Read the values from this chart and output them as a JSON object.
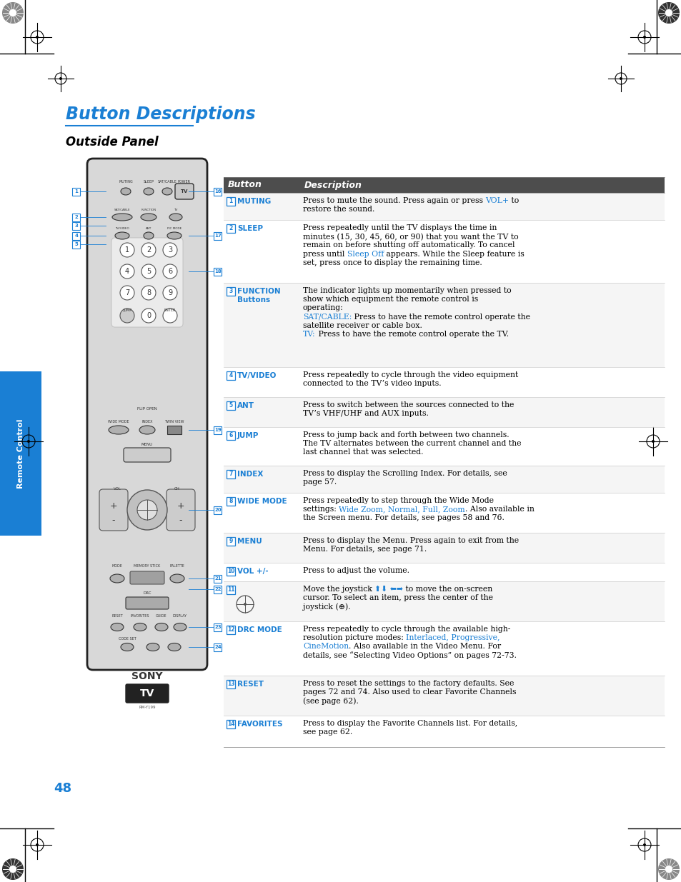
{
  "title": "Button Descriptions",
  "subtitle": "Outside Panel",
  "page_number": "48",
  "header_bg": "#4d4d4d",
  "blue_color": "#1a7fd4",
  "black_color": "#000000",
  "col1_header": "Button",
  "col2_header": "Description",
  "rows": [
    {
      "button_num": "1",
      "button_name": "MUTING",
      "description": [
        {
          "text": "Press to mute the sound. Press again or press ",
          "color": "#000000"
        },
        {
          "text": "VOL+",
          "color": "#1a7fd4"
        },
        {
          "text": " to\nrestore the sound.",
          "color": "#000000"
        }
      ]
    },
    {
      "button_num": "2",
      "button_name": "SLEEP",
      "description": [
        {
          "text": "Press repeatedly until the TV displays the time in\nminutes (15, 30, 45, 60, or 90) that you want the TV to\nremain on before shutting off automatically. To cancel\npress until ",
          "color": "#000000"
        },
        {
          "text": "Sleep Off",
          "color": "#1a7fd4"
        },
        {
          "text": " appears. While the Sleep feature is\nset, press once to display the remaining time.",
          "color": "#000000"
        }
      ]
    },
    {
      "button_num": "3",
      "button_name": "FUNCTION\nButtons",
      "description": [
        {
          "text": "The indicator lights up momentarily when pressed to\nshow which equipment the remote control is\noperating:\n",
          "color": "#000000"
        },
        {
          "text": "SAT/CABLE:",
          "color": "#1a7fd4"
        },
        {
          "text": " Press to have the remote control operate the\nsatellite receiver or cable box.\n",
          "color": "#000000"
        },
        {
          "text": "TV:",
          "color": "#1a7fd4"
        },
        {
          "text": " Press to have the remote control operate the TV.",
          "color": "#000000"
        }
      ]
    },
    {
      "button_num": "4",
      "button_name": "TV/VIDEO",
      "description": [
        {
          "text": "Press repeatedly to cycle through the video equipment\nconnected to the TV’s video inputs.",
          "color": "#000000"
        }
      ]
    },
    {
      "button_num": "5",
      "button_name": "ANT",
      "description": [
        {
          "text": "Press to switch between the sources connected to the\nTV’s VHF/UHF and AUX inputs.",
          "color": "#000000"
        }
      ]
    },
    {
      "button_num": "6",
      "button_name": "JUMP",
      "description": [
        {
          "text": "Press to jump back and forth between two channels.\nThe TV alternates between the current channel and the\nlast channel that was selected.",
          "color": "#000000"
        }
      ]
    },
    {
      "button_num": "7",
      "button_name": "INDEX",
      "description": [
        {
          "text": "Press to display the Scrolling Index. For details, see\npage 57.",
          "color": "#000000"
        }
      ]
    },
    {
      "button_num": "8",
      "button_name": "WIDE MODE",
      "description": [
        {
          "text": "Press repeatedly to step through the Wide Mode\nsettings: ",
          "color": "#000000"
        },
        {
          "text": "Wide Zoom, Normal, Full, Zoom",
          "color": "#1a7fd4"
        },
        {
          "text": ". Also available in\nthe Screen menu. For details, see pages 58 and 76.",
          "color": "#000000"
        }
      ]
    },
    {
      "button_num": "9",
      "button_name": "MENU",
      "description": [
        {
          "text": "Press to display the Menu. Press again to exit from the\nMenu. For details, see page 71.",
          "color": "#000000"
        }
      ]
    },
    {
      "button_num": "10",
      "button_name": "VOL +/-",
      "description": [
        {
          "text": "Press to adjust the volume.",
          "color": "#000000"
        }
      ]
    },
    {
      "button_num": "11",
      "button_name": "",
      "has_joystick_icon": true,
      "description": [
        {
          "text": "Move the joystick ",
          "color": "#000000"
        },
        {
          "text": "⬆⬇ ⬅➡",
          "color": "#1a7fd4"
        },
        {
          "text": " to move the on-screen\ncursor. To select an item, press the center of the\njoystick (",
          "color": "#000000"
        },
        {
          "text": "⊕",
          "color": "#000000"
        },
        {
          "text": ").",
          "color": "#000000"
        }
      ]
    },
    {
      "button_num": "12",
      "button_name": "DRC MODE",
      "description": [
        {
          "text": "Press repeatedly to cycle through the available high-\nresolution picture modes: ",
          "color": "#000000"
        },
        {
          "text": "Interlaced, Progressive,\nCineMotion",
          "color": "#1a7fd4"
        },
        {
          "text": ". Also available in the Video Menu. For\ndetails, see “Selecting Video Options” on pages 72-73.",
          "color": "#000000"
        }
      ]
    },
    {
      "button_num": "13",
      "button_name": "RESET",
      "description": [
        {
          "text": "Press to reset the settings to the factory defaults. See\npages 72 and 74. Also used to clear Favorite Channels\n(see page 62).",
          "color": "#000000"
        }
      ]
    },
    {
      "button_num": "14",
      "button_name": "FAVORITES",
      "description": [
        {
          "text": "Press to display the Favorite Channels list. For details,\nsee page 62.",
          "color": "#000000"
        }
      ]
    }
  ]
}
